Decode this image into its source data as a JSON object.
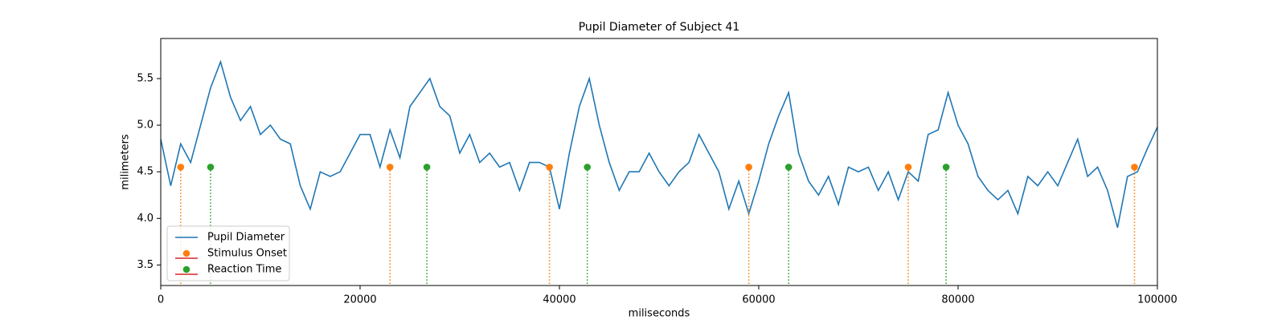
{
  "chart_data": {
    "type": "line",
    "title": "Pupil Diameter of Subject 41",
    "xlabel": "miliseconds",
    "ylabel": "milimeters",
    "xlim": [
      0,
      100000
    ],
    "ylim": [
      3.28,
      5.93
    ],
    "xticks": [
      0,
      20000,
      40000,
      60000,
      80000,
      100000
    ],
    "yticks": [
      3.5,
      {
        "value": 4,
        "label": "4.0"
      },
      4.5,
      {
        "value": 5,
        "label": "5.0"
      },
      5.5
    ],
    "legend": "lower left",
    "baseline_color": "#d62728",
    "series": [
      {
        "name": "Pupil Diameter",
        "type": "line",
        "color": "#1f77b4",
        "x": [
          0,
          1000,
          2000,
          3000,
          4000,
          5000,
          6000,
          7000,
          8000,
          9000,
          10000,
          11000,
          12000,
          13000,
          14000,
          15000,
          16000,
          17000,
          18000,
          19000,
          20000,
          21000,
          22000,
          23000,
          24000,
          25000,
          26000,
          27000,
          28000,
          29000,
          30000,
          31000,
          32000,
          33000,
          34000,
          35000,
          36000,
          37000,
          38000,
          39000,
          40000,
          41000,
          42000,
          43000,
          44000,
          45000,
          46000,
          47000,
          48000,
          49000,
          50000,
          51000,
          52000,
          53000,
          54000,
          55000,
          56000,
          57000,
          58000,
          59000,
          60000,
          61000,
          62000,
          63000,
          64000,
          65000,
          66000,
          67000,
          68000,
          69000,
          70000,
          71000,
          72000,
          73000,
          74000,
          75000,
          76000,
          77000,
          78000,
          79000,
          80000,
          81000,
          82000,
          83000,
          84000,
          85000,
          86000,
          87000,
          88000,
          89000,
          90000,
          91000,
          92000,
          93000,
          94000,
          95000,
          96000,
          97000,
          98000,
          99000,
          100000
        ],
        "values": [
          4.85,
          4.35,
          4.8,
          4.6,
          5.0,
          5.4,
          5.68,
          5.3,
          5.05,
          5.2,
          4.9,
          5.0,
          4.85,
          4.8,
          4.35,
          4.1,
          4.5,
          4.45,
          4.5,
          4.7,
          4.9,
          4.9,
          4.55,
          4.95,
          4.65,
          5.2,
          5.35,
          5.5,
          5.2,
          5.1,
          4.7,
          4.9,
          4.6,
          4.7,
          4.55,
          4.6,
          4.3,
          4.6,
          4.6,
          4.55,
          4.1,
          4.7,
          5.2,
          5.5,
          5.0,
          4.6,
          4.3,
          4.5,
          4.5,
          4.7,
          4.5,
          4.35,
          4.5,
          4.6,
          4.9,
          4.7,
          4.5,
          4.1,
          4.4,
          4.05,
          4.4,
          4.8,
          5.1,
          5.35,
          4.7,
          4.4,
          4.25,
          4.45,
          4.15,
          4.55,
          4.5,
          4.55,
          4.3,
          4.5,
          4.2,
          4.5,
          4.4,
          4.9,
          4.95,
          5.35,
          5.0,
          4.8,
          4.45,
          4.3,
          4.2,
          4.3,
          4.05,
          4.45,
          4.35,
          4.5,
          4.35,
          4.6,
          4.85,
          4.45,
          4.55,
          4.3,
          3.9,
          4.45,
          4.5,
          4.75,
          4.98
        ]
      },
      {
        "name": "Stimulus Onset",
        "type": "stem",
        "color": "#ff7f0e",
        "x": [
          2000,
          23000,
          39000,
          59000,
          75000,
          97700
        ],
        "values": [
          4.55,
          4.55,
          4.55,
          4.55,
          4.55,
          4.55
        ]
      },
      {
        "name": "Reaction Time",
        "type": "stem",
        "color": "#2ca02c",
        "x": [
          5000,
          26700,
          42800,
          63000,
          78800
        ],
        "values": [
          4.55,
          4.55,
          4.55,
          4.55,
          4.55
        ]
      }
    ]
  }
}
